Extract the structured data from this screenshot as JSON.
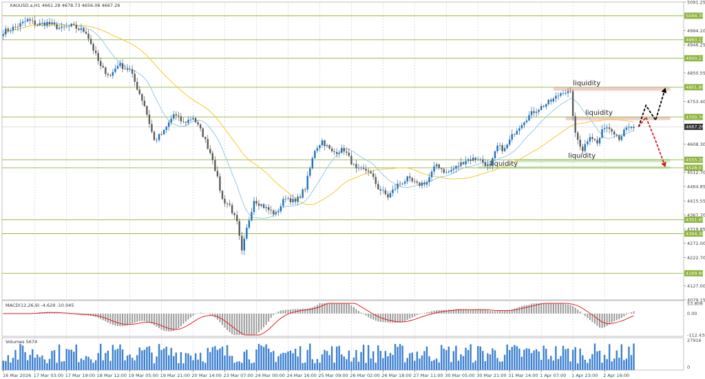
{
  "chart_data": {
    "type": "candlestick",
    "symbol_title": "XAUUSD.a,H1  4661.28 4678.73 4656.06 4667.26",
    "price_axis": {
      "min": 4079.15,
      "max": 5091.25,
      "ticks": [
        5091.25,
        4994.1,
        4946.25,
        4850.55,
        4753.4,
        4608.3,
        4512.7,
        4464.85,
        4415.55,
        4367.7,
        4319.85,
        4272.0,
        4222.7,
        4127.0,
        4079.15
      ]
    },
    "current_price": {
      "label": "4667.26",
      "value": 4667.26,
      "color": "#333333"
    },
    "levels": [
      {
        "value": 5044.78,
        "label": "5044.78"
      },
      {
        "value": 4963.11,
        "label": "4963.11"
      },
      {
        "value": 4900.27,
        "label": "4900.27"
      },
      {
        "value": 4801.89,
        "label": "4801.89"
      },
      {
        "value": 4700.76,
        "label": "4700.76"
      },
      {
        "value": 4555.28,
        "label": "4555.28"
      },
      {
        "value": 4528.07,
        "label": "4528.07"
      },
      {
        "value": 4351.65,
        "label": "4351.65"
      },
      {
        "value": 4304.39,
        "label": "4304.39"
      },
      {
        "value": 4169.6,
        "label": "4169.60"
      }
    ],
    "time_labels": [
      "16 Mar 2026",
      "17 Mar 03:00",
      "17 Mar 19:00",
      "18 Mar 12:00",
      "19 Mar 05:00",
      "19 Mar 21:00",
      "20 Mar 14:00",
      "23 Mar 07:00",
      "24 Mar 00:00",
      "24 Mar 16:00",
      "25 Mar 09:00",
      "26 Mar 02:00",
      "26 Mar 18:00",
      "27 Mar 11:00",
      "30 Mar 05:00",
      "30 Mar 21:00",
      "31 Mar 14:00",
      "1 Apr 07:00",
      "1 Apr 23:00",
      "2 Apr 16:00"
    ],
    "price_path_keypoints": [
      {
        "bar": 0,
        "price": 4990
      },
      {
        "bar": 6,
        "price": 5010
      },
      {
        "bar": 10,
        "price": 5030
      },
      {
        "bar": 14,
        "price": 5015
      },
      {
        "bar": 18,
        "price": 5020
      },
      {
        "bar": 24,
        "price": 5000
      },
      {
        "bar": 28,
        "price": 5010
      },
      {
        "bar": 34,
        "price": 4990
      },
      {
        "bar": 40,
        "price": 4870
      },
      {
        "bar": 44,
        "price": 4840
      },
      {
        "bar": 47,
        "price": 4880
      },
      {
        "bar": 52,
        "price": 4860
      },
      {
        "bar": 58,
        "price": 4740
      },
      {
        "bar": 62,
        "price": 4620
      },
      {
        "bar": 66,
        "price": 4650
      },
      {
        "bar": 70,
        "price": 4710
      },
      {
        "bar": 74,
        "price": 4680
      },
      {
        "bar": 78,
        "price": 4700
      },
      {
        "bar": 82,
        "price": 4640
      },
      {
        "bar": 86,
        "price": 4560
      },
      {
        "bar": 90,
        "price": 4420
      },
      {
        "bar": 93,
        "price": 4400
      },
      {
        "bar": 96,
        "price": 4340
      },
      {
        "bar": 98,
        "price": 4240
      },
      {
        "bar": 100,
        "price": 4320
      },
      {
        "bar": 103,
        "price": 4420
      },
      {
        "bar": 108,
        "price": 4390
      },
      {
        "bar": 112,
        "price": 4370
      },
      {
        "bar": 116,
        "price": 4430
      },
      {
        "bar": 120,
        "price": 4410
      },
      {
        "bar": 124,
        "price": 4460
      },
      {
        "bar": 128,
        "price": 4590
      },
      {
        "bar": 131,
        "price": 4620
      },
      {
        "bar": 135,
        "price": 4580
      },
      {
        "bar": 140,
        "price": 4590
      },
      {
        "bar": 145,
        "price": 4520
      },
      {
        "bar": 150,
        "price": 4520
      },
      {
        "bar": 154,
        "price": 4460
      },
      {
        "bar": 158,
        "price": 4430
      },
      {
        "bar": 162,
        "price": 4470
      },
      {
        "bar": 166,
        "price": 4490
      },
      {
        "bar": 170,
        "price": 4470
      },
      {
        "bar": 174,
        "price": 4480
      },
      {
        "bar": 178,
        "price": 4540
      },
      {
        "bar": 182,
        "price": 4510
      },
      {
        "bar": 186,
        "price": 4530
      },
      {
        "bar": 190,
        "price": 4555
      },
      {
        "bar": 195,
        "price": 4560
      },
      {
        "bar": 200,
        "price": 4530
      },
      {
        "bar": 203,
        "price": 4600
      },
      {
        "bar": 206,
        "price": 4590
      },
      {
        "bar": 210,
        "price": 4650
      },
      {
        "bar": 214,
        "price": 4690
      },
      {
        "bar": 218,
        "price": 4720
      },
      {
        "bar": 222,
        "price": 4740
      },
      {
        "bar": 226,
        "price": 4760
      },
      {
        "bar": 230,
        "price": 4790
      },
      {
        "bar": 233,
        "price": 4780
      },
      {
        "bar": 235,
        "price": 4640
      },
      {
        "bar": 238,
        "price": 4590
      },
      {
        "bar": 241,
        "price": 4640
      },
      {
        "bar": 244,
        "price": 4610
      },
      {
        "bar": 247,
        "price": 4670
      },
      {
        "bar": 250,
        "price": 4660
      },
      {
        "bar": 253,
        "price": 4630
      },
      {
        "bar": 256,
        "price": 4660
      },
      {
        "bar": 259,
        "price": 4667.26
      }
    ],
    "bar_count": 260,
    "annotations": [
      {
        "text": "liquidity",
        "price": 4801.89,
        "bar": 238,
        "zone": "sell",
        "zone_top": 4801.89,
        "zone_bottom": 4790
      },
      {
        "text": "liquidity",
        "price": 4700.76,
        "bar": 243,
        "zone": "sell",
        "zone_top": 4700.76,
        "zone_bottom": 4690
      },
      {
        "text": "liquidity",
        "price": 4555.28,
        "bar": 236,
        "zone": "buy",
        "zone_top": 4558,
        "zone_bottom": 4546
      },
      {
        "text": "liquidity",
        "price": 4528.07,
        "bar": 204,
        "zone": "buy",
        "zone_top": 4534,
        "zone_bottom": 4525
      }
    ],
    "projections": [
      {
        "color": "#000000",
        "points": [
          {
            "bar": 261,
            "price": 4667
          },
          {
            "bar": 264,
            "price": 4740
          },
          {
            "bar": 268,
            "price": 4690
          },
          {
            "bar": 272,
            "price": 4800
          }
        ]
      },
      {
        "color": "#cc2222",
        "points": [
          {
            "bar": 261,
            "price": 4667
          },
          {
            "bar": 264,
            "price": 4700
          },
          {
            "bar": 268,
            "price": 4620
          },
          {
            "bar": 272,
            "price": 4530
          }
        ]
      }
    ],
    "macd": {
      "title": "MACD(12,26,9) -4.629 -10.045",
      "axis_ticks": [
        {
          "value": 53.809,
          "label": "53.809"
        },
        {
          "value": 0.0,
          "label": "0.00"
        },
        {
          "value": -112.438,
          "label": "-112.438"
        }
      ]
    },
    "volumes": {
      "title": "Volumes 5674",
      "axis_ticks": [
        {
          "label": "27916",
          "pos": "top"
        },
        {
          "label": "0",
          "pos": "bottom"
        }
      ]
    },
    "colors": {
      "level_line": "#8db33c",
      "level_tag": "#8db33c",
      "bull_candle": "#1e6fb8",
      "bear_candle": "#5a5a5a",
      "ma_fast": "#87c5e4",
      "ma_slow": "#f2c417",
      "macd_hist": "#9a9a9a",
      "macd_signal": "#e02020",
      "volume_bar": "#3a7fd0",
      "sell_zone": "#f4c7c7",
      "buy_zone": "#cfe8c0",
      "vgrid": "#c8c8c8"
    }
  }
}
